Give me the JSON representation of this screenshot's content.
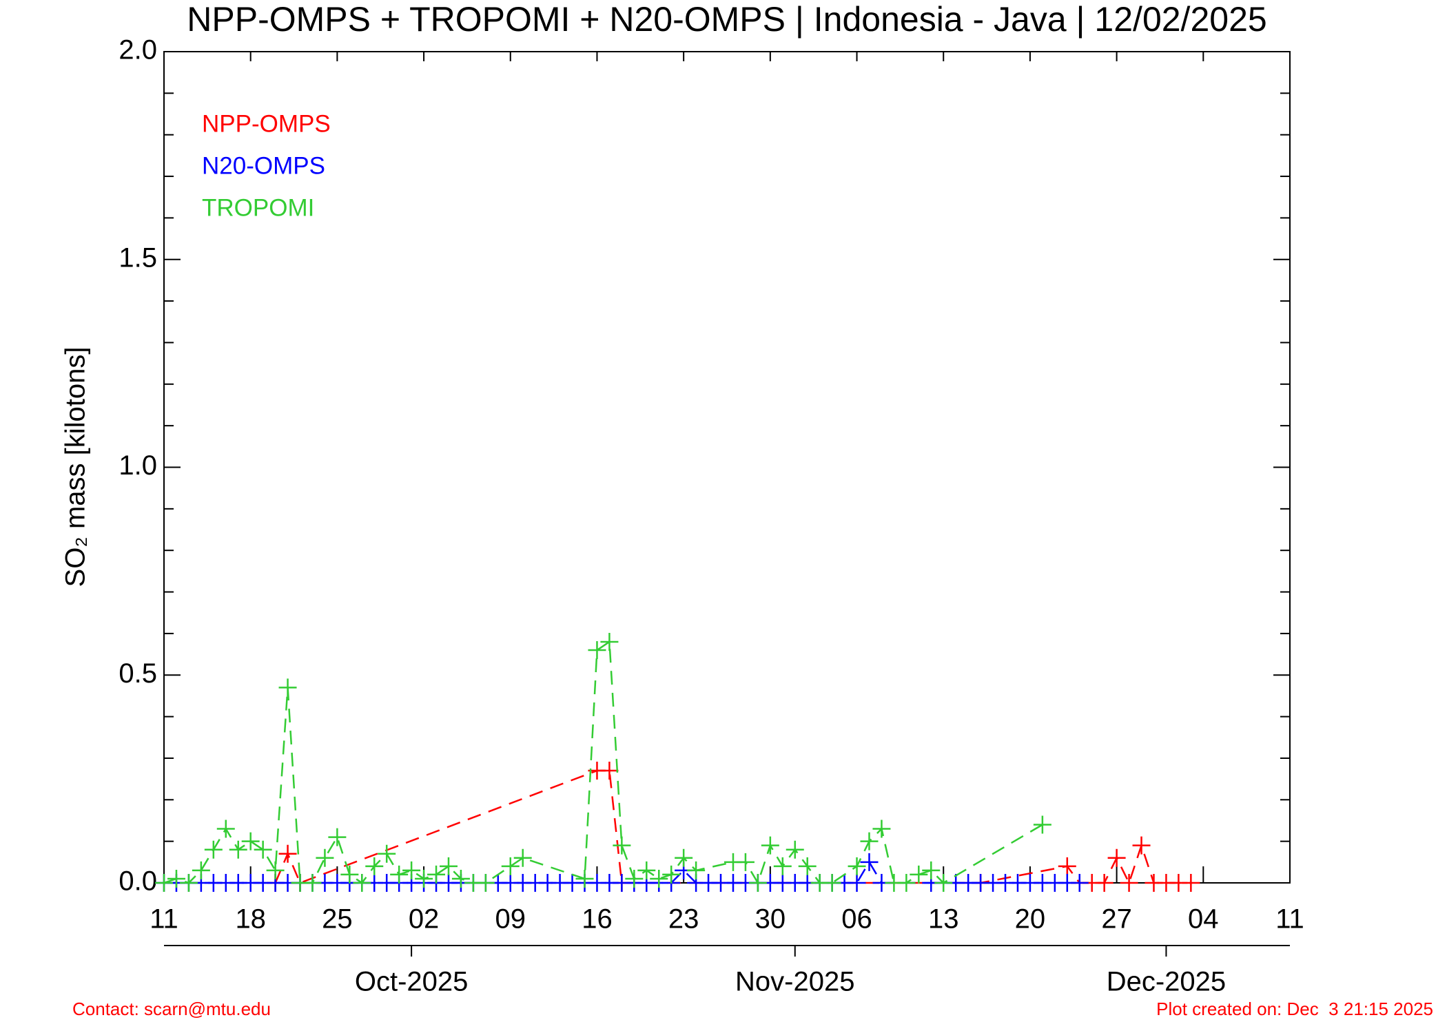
{
  "chart_data": {
    "type": "line",
    "title": "NPP-OMPS + TROPOMI + N20-OMPS | Indonesia - Java | 12/02/2025",
    "ylabel": "SO₂ mass [kilotons]",
    "xlim": [
      "2025-09-11",
      "2025-12-11"
    ],
    "ylim": [
      0,
      2
    ],
    "yticks": [
      {
        "value": 0,
        "label": "0.0"
      },
      0.5,
      {
        "value": 1,
        "label": "1.0"
      },
      1.5,
      {
        "value": 2,
        "label": "2.0"
      }
    ],
    "xticks": [
      {
        "value": "2025-09-11",
        "label": "11"
      },
      {
        "value": "2025-09-18",
        "label": "18"
      },
      {
        "value": "2025-09-25",
        "label": "25"
      },
      {
        "value": "2025-10-02",
        "label": "02"
      },
      {
        "value": "2025-10-09",
        "label": "09"
      },
      {
        "value": "2025-10-16",
        "label": "16"
      },
      {
        "value": "2025-10-23",
        "label": "23"
      },
      {
        "value": "2025-10-30",
        "label": "30"
      },
      {
        "value": "2025-11-06",
        "label": "06"
      },
      {
        "value": "2025-11-13",
        "label": "13"
      },
      {
        "value": "2025-11-20",
        "label": "20"
      },
      {
        "value": "2025-11-27",
        "label": "27"
      },
      {
        "value": "2025-12-04",
        "label": "04"
      },
      {
        "value": "2025-12-11",
        "label": "11"
      }
    ],
    "month_ticks": [
      {
        "value": "2025-10-01",
        "label": "Oct-2025"
      },
      {
        "value": "2025-11-01",
        "label": "Nov-2025"
      },
      {
        "value": "2025-12-01",
        "label": "Dec-2025"
      }
    ],
    "legend": "upper left",
    "series": [
      {
        "name": "NPP-OMPS",
        "color": "#ff0000",
        "x": [
          "2025-09-20",
          "2025-09-21",
          "2025-09-22",
          "2025-10-16",
          "2025-10-17",
          "2025-10-18",
          "2025-11-16",
          "2025-11-23",
          "2025-11-24",
          "2025-11-25",
          "2025-11-26",
          "2025-11-27",
          "2025-11-28",
          "2025-11-29",
          "2025-11-30",
          "2025-12-01",
          "2025-12-02",
          "2025-12-03"
        ],
        "values": [
          0,
          0.07,
          0,
          0.27,
          0.27,
          0,
          0,
          0.04,
          0,
          0,
          0,
          0.06,
          0,
          0.09,
          0,
          0,
          0,
          0
        ]
      },
      {
        "name": "N20-OMPS",
        "color": "#0000ff",
        "x": [
          "2025-09-11",
          "2025-09-12",
          "2025-09-13",
          "2025-09-14",
          "2025-09-15",
          "2025-09-16",
          "2025-09-17",
          "2025-09-18",
          "2025-09-19",
          "2025-09-20",
          "2025-09-21",
          "2025-09-22",
          "2025-09-23",
          "2025-09-24",
          "2025-09-25",
          "2025-09-26",
          "2025-09-27",
          "2025-09-28",
          "2025-09-29",
          "2025-09-30",
          "2025-10-01",
          "2025-10-02",
          "2025-10-03",
          "2025-10-04",
          "2025-10-05",
          "2025-10-06",
          "2025-10-07",
          "2025-10-08",
          "2025-10-09",
          "2025-10-10",
          "2025-10-11",
          "2025-10-12",
          "2025-10-13",
          "2025-10-14",
          "2025-10-15",
          "2025-10-16",
          "2025-10-17",
          "2025-10-18",
          "2025-10-19",
          "2025-10-20",
          "2025-10-21",
          "2025-10-22",
          "2025-10-23",
          "2025-10-24",
          "2025-10-25",
          "2025-10-26",
          "2025-10-27",
          "2025-10-28",
          "2025-10-29",
          "2025-10-30",
          "2025-10-31",
          "2025-11-01",
          "2025-11-02",
          "2025-11-03",
          "2025-11-04",
          "2025-11-05",
          "2025-11-06",
          "2025-11-07",
          "2025-11-08",
          "2025-11-12",
          "2025-11-13",
          "2025-11-14",
          "2025-11-15",
          "2025-11-16",
          "2025-11-17",
          "2025-11-18",
          "2025-11-19",
          "2025-11-20",
          "2025-11-21",
          "2025-11-22",
          "2025-11-23",
          "2025-11-24"
        ],
        "values": [
          0,
          0,
          0,
          0,
          0,
          0,
          0,
          0,
          0,
          0,
          0,
          0,
          0,
          0,
          0,
          0,
          0,
          0,
          0,
          0,
          0,
          0,
          0,
          0,
          0,
          0,
          0,
          0,
          0,
          0,
          0,
          0,
          0,
          0,
          0,
          0,
          0,
          0,
          0,
          0,
          0,
          0,
          0.03,
          0,
          0,
          0,
          0,
          0,
          0,
          0,
          0,
          0,
          0,
          0,
          0,
          0,
          0,
          0.05,
          0,
          0,
          0,
          0,
          0,
          0,
          0,
          0,
          0,
          0,
          0,
          0,
          0,
          0
        ]
      },
      {
        "name": "TROPOMI",
        "color": "#33cc33",
        "x": [
          "2025-09-11",
          "2025-09-12",
          "2025-09-13",
          "2025-09-14",
          "2025-09-15",
          "2025-09-16",
          "2025-09-17",
          "2025-09-18",
          "2025-09-19",
          "2025-09-20",
          "2025-09-21",
          "2025-09-22",
          "2025-09-23",
          "2025-09-24",
          "2025-09-25",
          "2025-09-26",
          "2025-09-27",
          "2025-09-28",
          "2025-09-29",
          "2025-09-30",
          "2025-10-01",
          "2025-10-02",
          "2025-10-03",
          "2025-10-04",
          "2025-10-05",
          "2025-10-06",
          "2025-10-07",
          "2025-10-09",
          "2025-10-10",
          "2025-10-15",
          "2025-10-16",
          "2025-10-17",
          "2025-10-18",
          "2025-10-19",
          "2025-10-20",
          "2025-10-21",
          "2025-10-22",
          "2025-10-23",
          "2025-10-24",
          "2025-10-27",
          "2025-10-28",
          "2025-10-29",
          "2025-10-30",
          "2025-10-31",
          "2025-11-01",
          "2025-11-02",
          "2025-11-03",
          "2025-11-04",
          "2025-11-06",
          "2025-11-07",
          "2025-11-08",
          "2025-11-09",
          "2025-11-10",
          "2025-11-11",
          "2025-11-12",
          "2025-11-13",
          "2025-11-21"
        ],
        "values": [
          0,
          0.01,
          0,
          0.03,
          0.08,
          0.13,
          0.08,
          0.1,
          0.08,
          0.03,
          0.47,
          0,
          0,
          0.06,
          0.11,
          0.02,
          0,
          0.04,
          0.07,
          0.02,
          0.03,
          0.01,
          0.02,
          0.04,
          0.01,
          0,
          0,
          0.04,
          0.06,
          0.01,
          0.56,
          0.58,
          0.09,
          0.01,
          0.03,
          0.01,
          0.02,
          0.06,
          0.03,
          0.05,
          0.05,
          0,
          0.09,
          0.04,
          0.08,
          0.04,
          0,
          0,
          0.04,
          0.1,
          0.13,
          0,
          0,
          0.02,
          0.03,
          0,
          0.14
        ]
      }
    ],
    "footer_left": "Contact: scarn@mtu.edu",
    "footer_right": "Plot created on: Dec  3 21:15 2025"
  }
}
